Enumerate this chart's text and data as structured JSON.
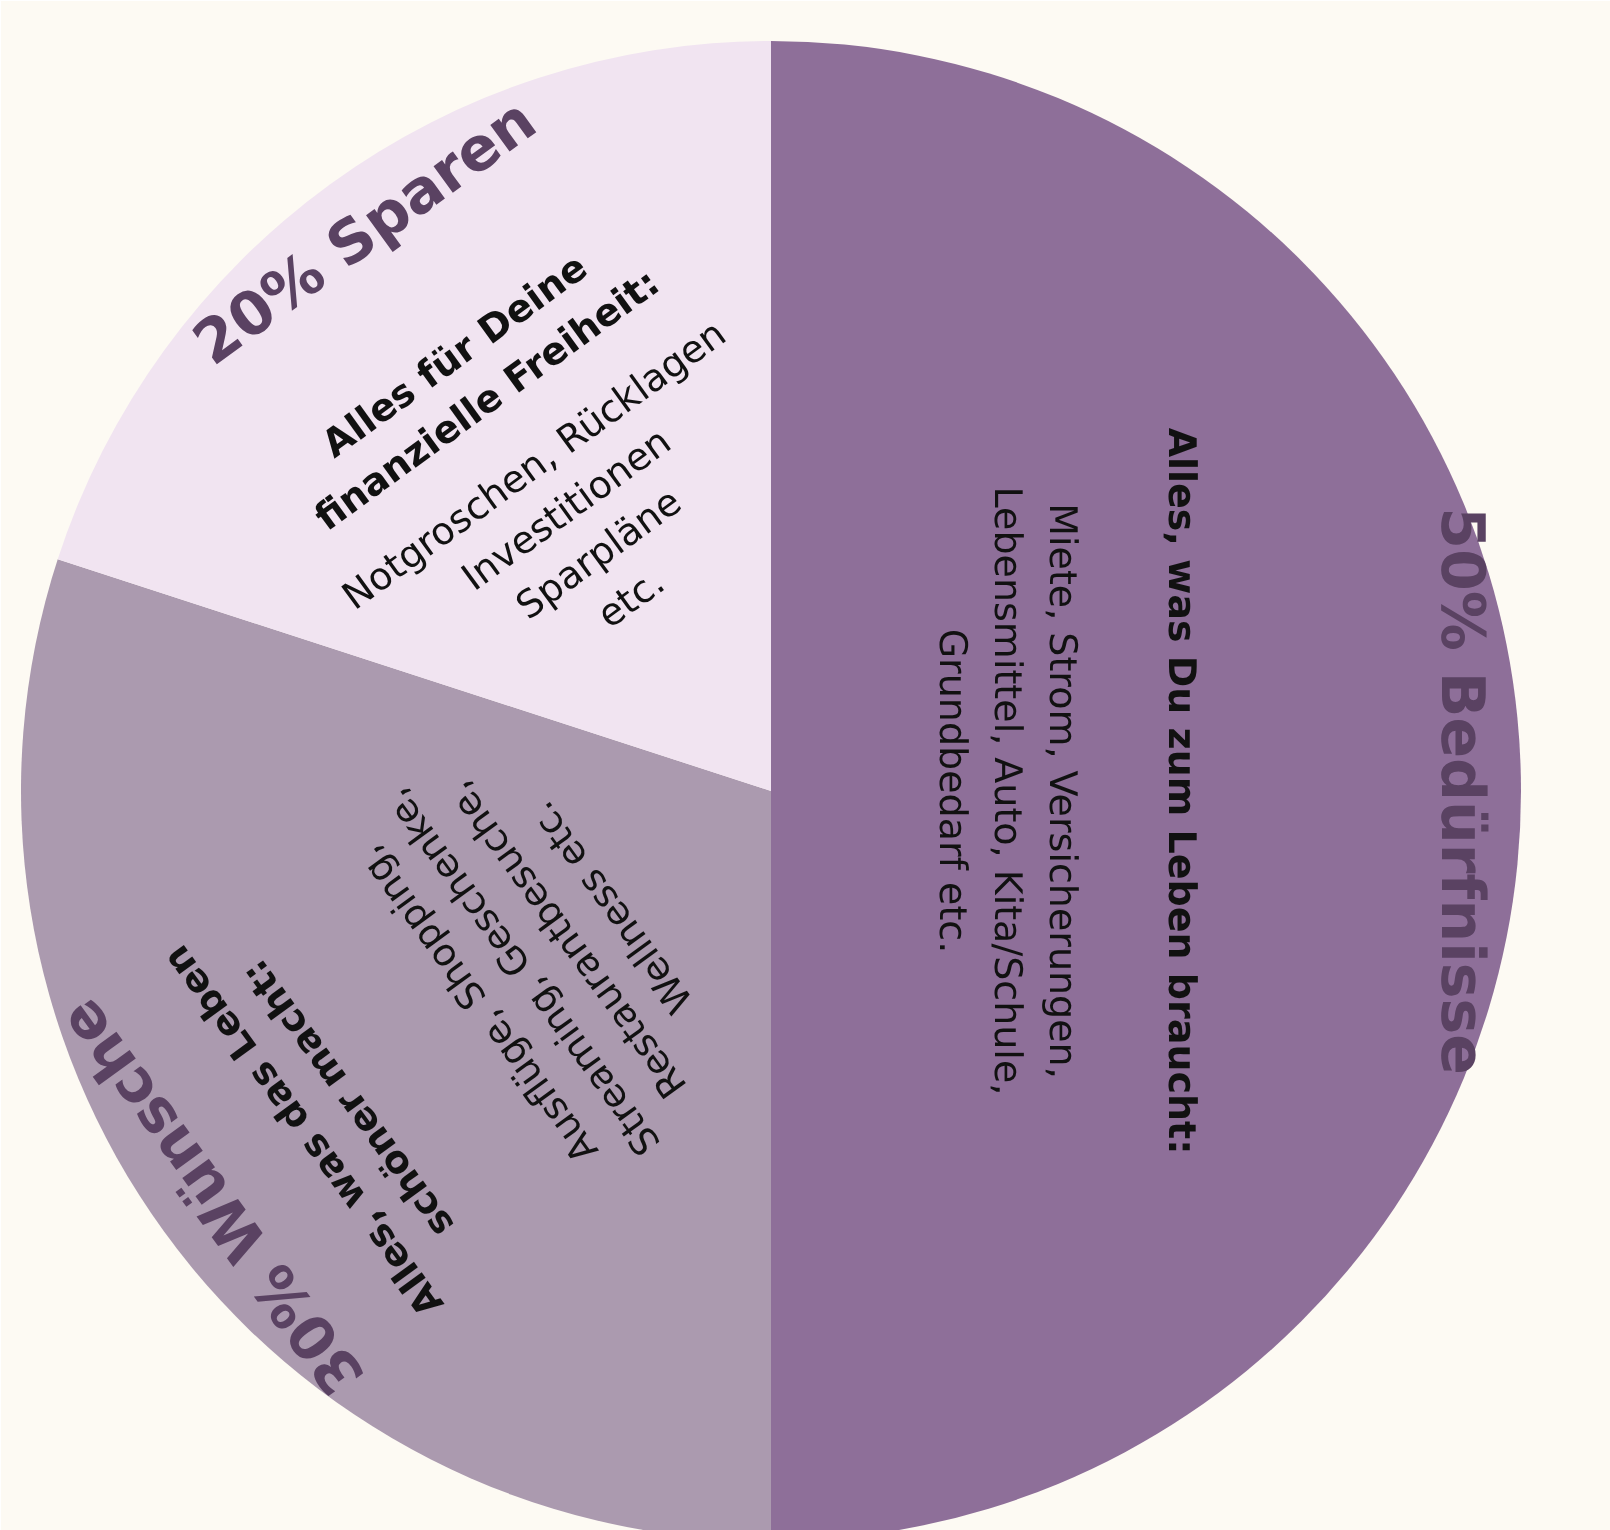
{
  "chart_data": {
    "type": "pie",
    "categories": [
      "50% Bedürfnisse",
      "30% Wünsche",
      "20% Sparen"
    ],
    "values": [
      50,
      30,
      20
    ],
    "colors": [
      "#8e6f99",
      "#ab9aaf",
      "#f1e4f1"
    ],
    "annotations": [
      "Alles, was Du zum Leben braucht:",
      "Miete, Strom, Versicherungen,\nLebensmittel, Auto, Kita/Schule,\nGrundbedarf etc.",
      "Alles, was das Leben\nschöner macht:",
      "Ausflüge, Shopping,\nStreaming, Geschenke,\nRestaurantbesuche,\nWellness etc.",
      "Alles für Deine\nfinanzielle Freiheit:",
      "Notgroschen, Rücklagen\nInvestitionen\nSparpläne\netc."
    ]
  }
}
